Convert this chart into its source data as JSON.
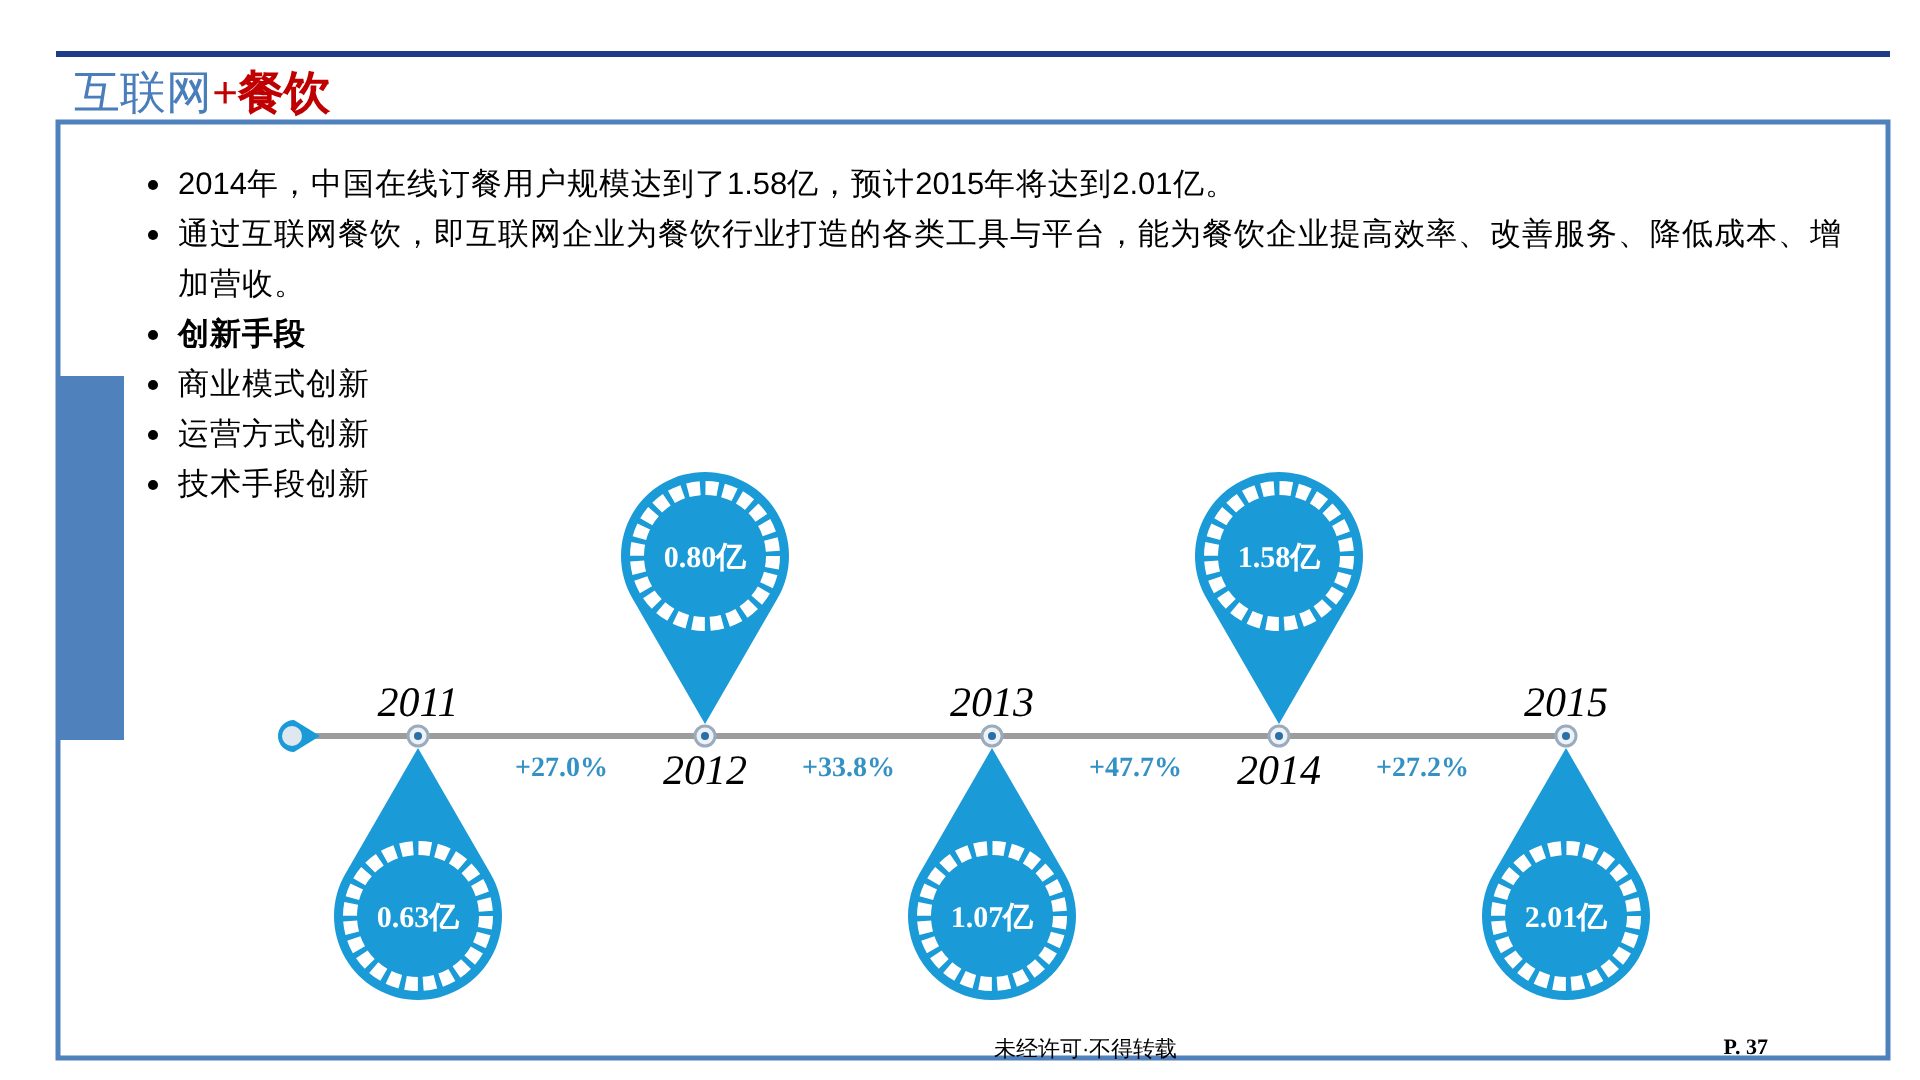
{
  "chart_data": {
    "type": "other",
    "title": "互联网+餐饮",
    "categories": [
      "2011",
      "2012",
      "2013",
      "2014",
      "2015"
    ],
    "values": [
      0.63,
      0.8,
      1.07,
      1.58,
      2.01
    ],
    "value_labels": [
      "0.63亿",
      "0.80亿",
      "1.07亿",
      "1.58亿",
      "2.01亿"
    ],
    "color": "#1a9ad6",
    "annotations": [
      "2014年，中国在线订餐用户规模达到了1.58亿，预计2015年将达到2.01亿。",
      "通过互联网餐饮，即互联网企业为餐饮行业打造的各类工具与平台，能为餐饮企业提高效率、改善服务、降低成本、增加营收。",
      "创新手段",
      "商业模式创新",
      "运营方式创新",
      "技术手段创新",
      "+27.0%",
      "+33.8%",
      "+47.7%",
      "+27.2%",
      "未经许可·不得转载",
      "P. 37"
    ]
  }
}
